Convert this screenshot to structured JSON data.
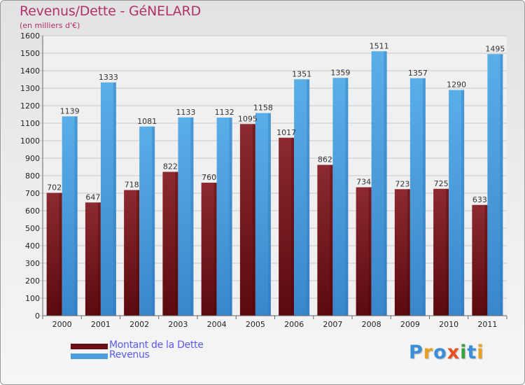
{
  "title": "Revenus/Dette - GéNELARD",
  "subtitle": "(en milliers d'€)",
  "chart_data": {
    "type": "bar",
    "categories": [
      "2000",
      "2001",
      "2002",
      "2003",
      "2004",
      "2005",
      "2006",
      "2007",
      "2008",
      "2009",
      "2010",
      "2011"
    ],
    "series": [
      {
        "name": "Montant de la Dette",
        "color": "#7a1a22",
        "values": [
          702,
          647,
          718,
          822,
          760,
          1095,
          1017,
          862,
          734,
          723,
          725,
          633
        ]
      },
      {
        "name": "Revenus",
        "color": "#4a9ee0",
        "values": [
          1139,
          1333,
          1081,
          1133,
          1132,
          1158,
          1351,
          1359,
          1511,
          1357,
          1290,
          1495
        ]
      }
    ],
    "data_labels": [
      [
        "702",
        "647",
        "718",
        "822",
        "760",
        "1095",
        "1017",
        "862",
        "734",
        "723",
        "725",
        "633"
      ],
      [
        "1139",
        "1333",
        "1081",
        "1133",
        "1132",
        "1158",
        "1351",
        "1359",
        "1511",
        "1357",
        "1290",
        "1495"
      ]
    ],
    "yticks": [
      "0",
      "100",
      "200",
      "300",
      "400",
      "500",
      "600",
      "700",
      "800",
      "900",
      "1000",
      "1100",
      "1200",
      "1300",
      "1400",
      "1500",
      "1600"
    ],
    "ylim": [
      0,
      1600
    ],
    "grid": true,
    "legend_position": "bottom-left"
  },
  "legend": {
    "debt_label": "Montant de la Dette",
    "revenue_label": "Revenus"
  },
  "logo": {
    "text": "Proxiti",
    "colors": [
      "#3a8fd8",
      "#e8a020",
      "#3a8fd8",
      "#e85020",
      "#3aa040",
      "#3a8fd8",
      "#e8a020"
    ]
  }
}
